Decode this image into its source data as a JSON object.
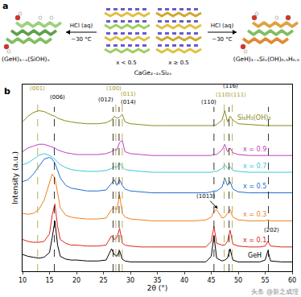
{
  "panel_a": {
    "label": "a",
    "left_product": "(GeH)₁₋ₓ(SiOH)ₓ",
    "right_product": "(GeH)₁₋ₓSiₓ(OH)₀.₅H₀.₅",
    "reagent": "HCl (aq)",
    "temperature": "−30 °C",
    "left_condition": "x < 0.5",
    "right_condition": "x ≥ 0.5",
    "precursor": "CaGe₂₋₂ₓSi₂ₓ"
  },
  "watermark": "头条 @新之成理",
  "chart_data": {
    "type": "line",
    "panel_label": "b",
    "x_label": "2θ (°)",
    "y_label": "Intensity (a.u.)",
    "xlim": [
      10,
      60
    ],
    "xticks": [
      10,
      15,
      20,
      25,
      30,
      35,
      40,
      45,
      50,
      55,
      60
    ],
    "ylim": [
      0,
      100
    ],
    "tick_labels": "x",
    "grid": false,
    "x": [
      10,
      11,
      12,
      13,
      14,
      15,
      15.5,
      16,
      16.5,
      17,
      18,
      19,
      20,
      22,
      24,
      25.5,
      26.5,
      27,
      27.5,
      28,
      28.5,
      29,
      30,
      32,
      34,
      36,
      38,
      40,
      42,
      44,
      45,
      45.5,
      46,
      47,
      47.5,
      48,
      48.5,
      49,
      50,
      52,
      54,
      55,
      55.5,
      56,
      58,
      60
    ],
    "series": [
      {
        "name": "GeH",
        "color": "#000000",
        "values": [
          9,
          8,
          7.5,
          7,
          7.5,
          10,
          18,
          27,
          14,
          8,
          6.5,
          6,
          6,
          5.5,
          5.5,
          6,
          12,
          9,
          8,
          11,
          6.5,
          5.5,
          5,
          5,
          5,
          5,
          5,
          5,
          5,
          5,
          8,
          19,
          7,
          5.5,
          6,
          7,
          12,
          6,
          5,
          5,
          5,
          6,
          11,
          5.5,
          5,
          5
        ]
      },
      {
        "name": "x = 0.1",
        "color": "#e0241b",
        "values": [
          17,
          16,
          15.5,
          15.5,
          16,
          20,
          30,
          36,
          24,
          17,
          15,
          14,
          14,
          13.5,
          13.5,
          14,
          19,
          17,
          18,
          23,
          15,
          14,
          13.5,
          13,
          13,
          13,
          13,
          13,
          13,
          13,
          16,
          24,
          15,
          14,
          14,
          16,
          22,
          14.5,
          13.5,
          13,
          13,
          13.5,
          16,
          13.5,
          13,
          13
        ]
      },
      {
        "name": "x = 0.3",
        "color": "#f07f1f",
        "values": [
          31,
          30.5,
          31,
          33,
          38,
          48,
          52,
          50,
          42,
          34,
          30,
          29,
          28.5,
          28,
          28,
          28.5,
          33,
          34,
          33,
          41,
          31,
          29,
          28,
          27.5,
          27,
          27,
          27,
          27,
          27,
          27.5,
          29,
          32,
          33,
          28.5,
          29,
          31,
          33,
          29,
          27.5,
          27,
          27,
          27,
          27.5,
          27,
          27,
          27
        ]
      },
      {
        "name": "x = 0.5",
        "color": "#1f6fd0",
        "values": [
          48,
          49,
          52,
          56,
          60,
          61,
          60,
          58,
          54,
          50,
          46,
          44.5,
          44,
          43,
          43,
          43.5,
          47,
          49,
          46,
          49,
          46,
          44,
          43,
          42.5,
          42,
          42,
          42,
          42,
          42,
          42,
          42.5,
          43,
          43,
          45,
          50,
          46,
          48,
          44,
          42.5,
          42,
          42,
          42,
          42,
          42,
          42,
          42
        ]
      },
      {
        "name": "x = 0.7",
        "color": "#3cc8d8",
        "values": [
          57,
          58,
          60,
          62,
          63,
          62,
          61,
          60,
          58.5,
          57,
          55.5,
          54.5,
          54,
          53.5,
          53.5,
          54,
          55,
          56,
          55.5,
          58,
          56,
          54.5,
          54,
          53.5,
          53,
          53,
          53,
          53,
          53,
          53,
          53,
          53.5,
          53.5,
          55,
          57,
          55,
          56,
          54,
          53.5,
          53,
          53,
          53,
          53,
          53,
          53,
          53
        ]
      },
      {
        "name": "x = 0.9",
        "color": "#c040c0",
        "values": [
          64,
          66,
          67,
          68,
          68,
          67,
          66.5,
          66,
          65,
          64.5,
          63.5,
          63,
          62.5,
          62.5,
          62.5,
          63,
          64,
          65,
          65,
          69,
          70,
          64,
          63,
          62.5,
          62,
          62,
          62,
          62,
          62,
          62,
          62,
          62.5,
          62.5,
          65,
          68,
          64,
          66,
          63.5,
          62.5,
          62,
          62,
          62,
          62,
          62,
          62,
          62
        ]
      },
      {
        "name": "Si₆H₃(OH)₃",
        "color": "#8a8a1e",
        "values": [
          80,
          83,
          85,
          86,
          85.5,
          84,
          83.5,
          83,
          82,
          81.5,
          80.5,
          80,
          79.5,
          79,
          79,
          79.5,
          81,
          83,
          82,
          82.5,
          84,
          80,
          79,
          78.5,
          78,
          78,
          78,
          78,
          78,
          78,
          78,
          78,
          78.5,
          81,
          86,
          80,
          83,
          81,
          79,
          78.5,
          78,
          78,
          78,
          78,
          78,
          78
        ]
      }
    ],
    "reference_lines": [
      {
        "x": 15.9,
        "color": "#000000"
      },
      {
        "x": 26.8,
        "color": "#000000"
      },
      {
        "x": 27.9,
        "color": "#000000"
      },
      {
        "x": 45.5,
        "color": "#000000"
      },
      {
        "x": 48.3,
        "color": "#000000"
      },
      {
        "x": 55.6,
        "color": "#000000"
      },
      {
        "x": 12.8,
        "color": "#a89a2a"
      },
      {
        "x": 27.3,
        "color": "#a89a2a"
      },
      {
        "x": 28.5,
        "color": "#a89a2a"
      },
      {
        "x": 47.4,
        "color": "#a89a2a"
      },
      {
        "x": 48.9,
        "color": "#a89a2a"
      }
    ],
    "annotations": [
      {
        "text": "(001)",
        "x": 12.8,
        "y": 98,
        "color": "#a89a2a"
      },
      {
        "text": "(100)",
        "x": 27.0,
        "y": 98,
        "color": "#a89a2a"
      },
      {
        "text": "(011)",
        "x": 29.6,
        "y": 95,
        "color": "#a89a2a"
      },
      {
        "text": "(110)",
        "x": 47.2,
        "y": 94.5,
        "color": "#a89a2a"
      },
      {
        "text": "(111)",
        "x": 50.0,
        "y": 94.5,
        "color": "#a89a2a"
      },
      {
        "text": "(116)",
        "x": 48.6,
        "y": 99,
        "color": "#000000"
      },
      {
        "text": "(006)",
        "x": 16.5,
        "y": 93,
        "color": "#000000"
      },
      {
        "text": "(012)",
        "x": 25.4,
        "y": 92,
        "color": "#000000"
      },
      {
        "text": "(014)",
        "x": 29.6,
        "y": 90.5,
        "color": "#000000"
      },
      {
        "text": "(110)",
        "x": 44.6,
        "y": 90.5,
        "color": "#000000"
      },
      {
        "text": "(202)",
        "x": 56.2,
        "y": 22,
        "color": "#000000"
      },
      {
        "text": "(1013)",
        "x": 44.0,
        "y": 40,
        "color": "#000000",
        "arrow_x": 46.2,
        "arrow_y": 33.5
      }
    ]
  }
}
